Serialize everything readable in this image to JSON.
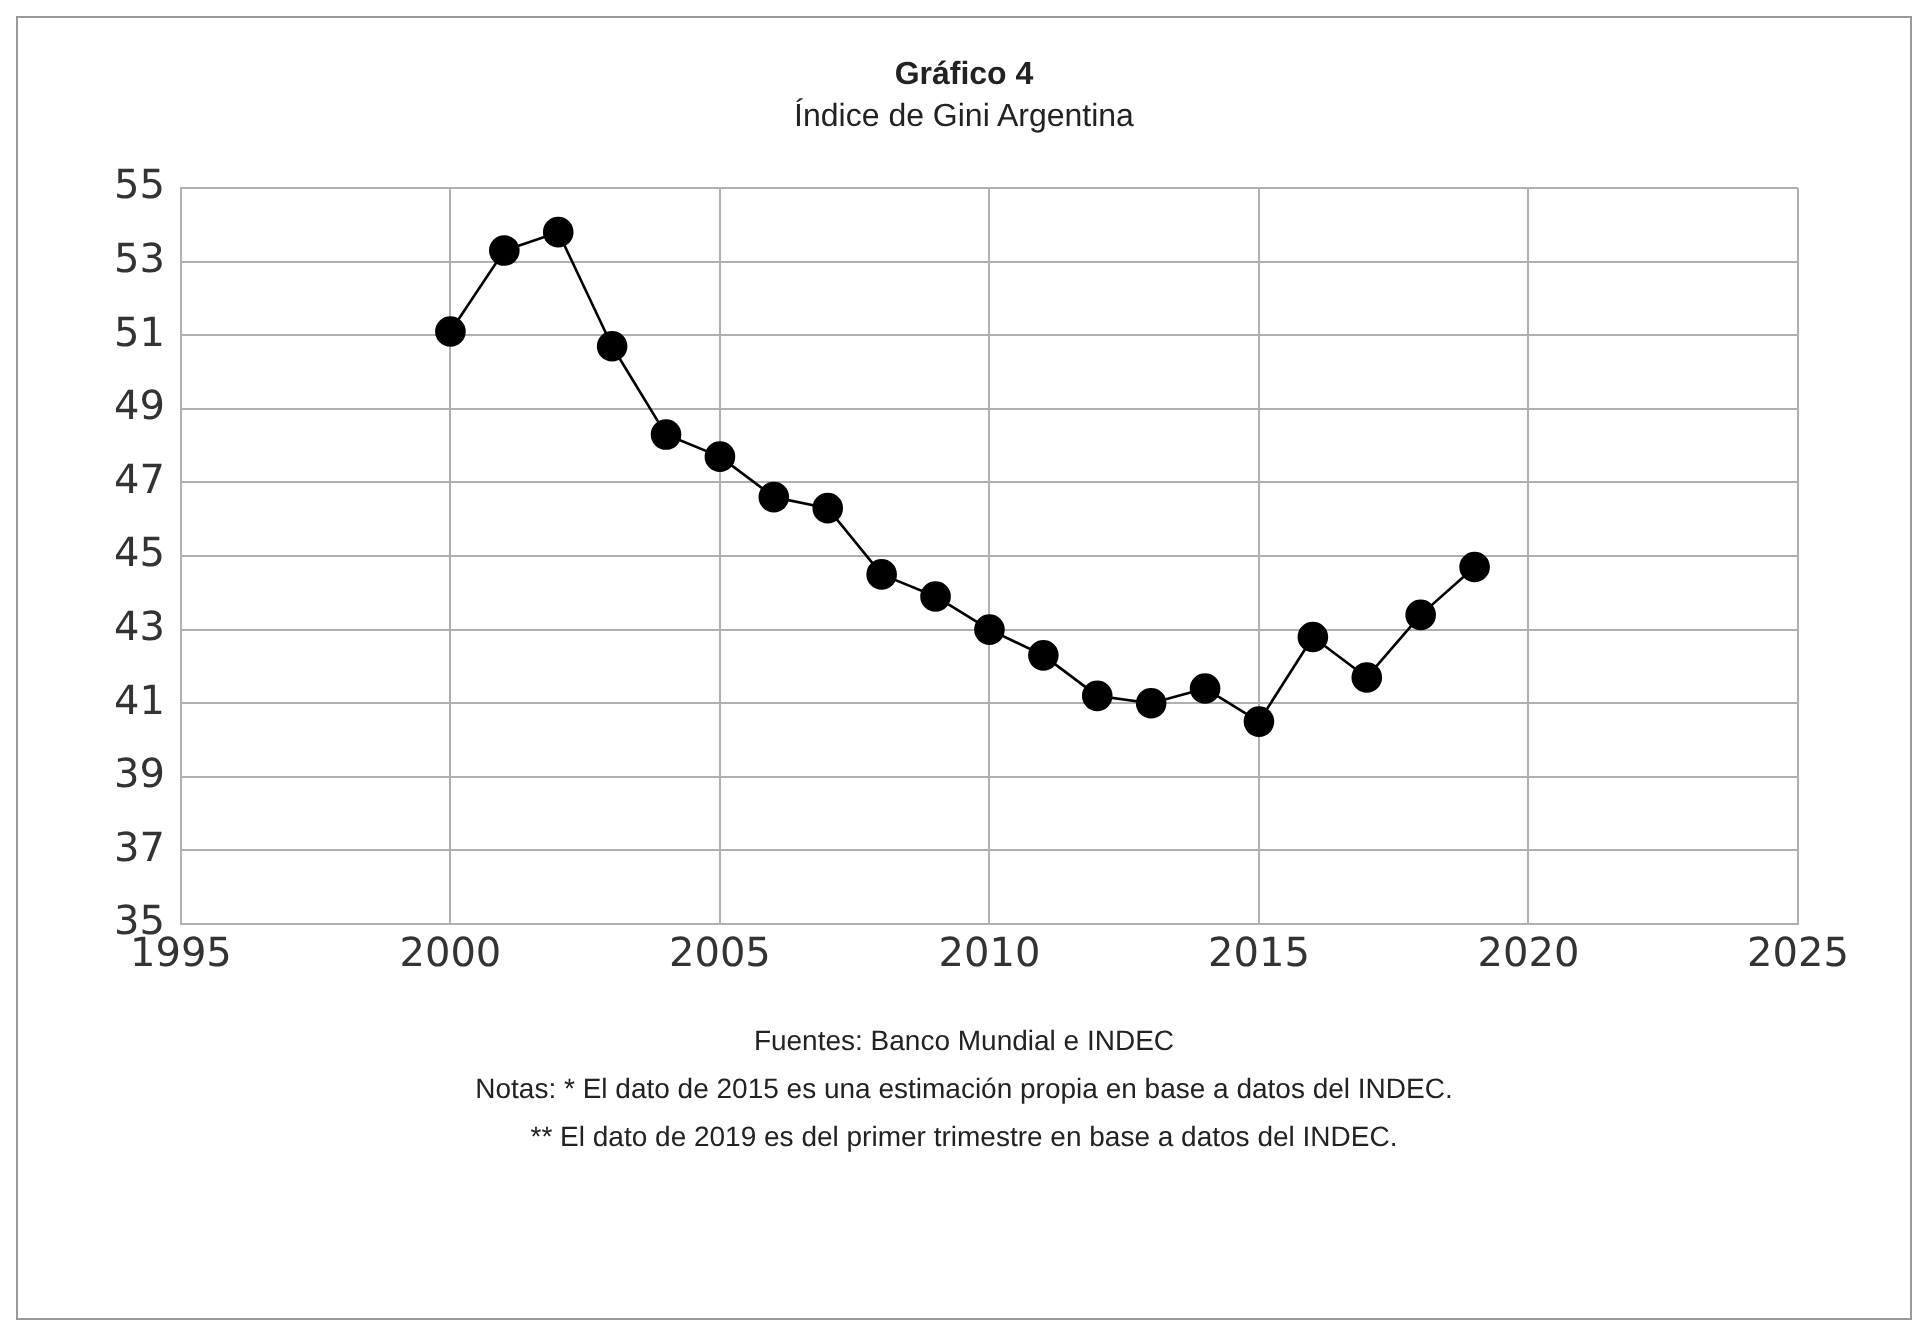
{
  "chart_data": {
    "type": "line",
    "title": "Gráfico 4",
    "subtitle": "Índice de Gini Argentina",
    "x": [
      2000,
      2001,
      2002,
      2003,
      2004,
      2005,
      2006,
      2007,
      2008,
      2009,
      2010,
      2011,
      2012,
      2013,
      2014,
      2015,
      2016,
      2017,
      2018,
      2019
    ],
    "series": [
      {
        "color": "#000000",
        "values": [
          51.1,
          53.3,
          53.8,
          50.7,
          48.3,
          47.7,
          46.6,
          46.3,
          44.5,
          43.9,
          43.0,
          42.3,
          41.2,
          41.0,
          41.4,
          40.5,
          42.8,
          41.7,
          43.4,
          44.7
        ]
      }
    ],
    "xlim": [
      1995,
      2025
    ],
    "xticks": [
      1995,
      2000,
      2005,
      2010,
      2015,
      2020,
      2025
    ],
    "ylim": [
      35,
      55
    ],
    "yticks": [
      35,
      37,
      39,
      41,
      43,
      45,
      47,
      49,
      51,
      53,
      55
    ],
    "grid": true,
    "legend": false,
    "marker": "circle",
    "line_style": "solid",
    "annotations": [
      "Fuentes: Banco Mundial e INDEC",
      "Notas: * El dato de 2015 es una estimación propia en base a datos del INDEC.",
      "** El dato de 2019 es del primer trimestre en base a datos del INDEC."
    ]
  }
}
